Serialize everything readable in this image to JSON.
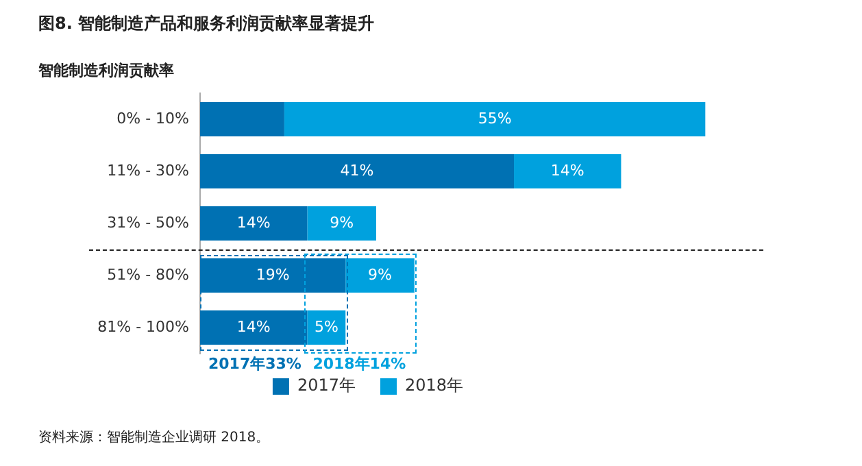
{
  "chart_data": {
    "type": "bar",
    "orientation": "horizontal",
    "stacked": true,
    "title": "图8. 智能制造产品和服务利润贡献率显著提升",
    "ylabel": "智能制造利润贡献率",
    "categories": [
      "0% - 10%",
      "11% - 30%",
      "31% - 50%",
      "51% - 80%",
      "81% - 100%"
    ],
    "series": [
      {
        "name": "2017年",
        "color": "#0071b3",
        "values": [
          11,
          41,
          14,
          19,
          14
        ],
        "value_labels": [
          null,
          "41%",
          "14%",
          "19%",
          "14%"
        ]
      },
      {
        "name": "2018年",
        "color": "#00a1de",
        "values": [
          55,
          14,
          9,
          9,
          5
        ],
        "value_labels": [
          "55%",
          "14%",
          "9%",
          "9%",
          "5%"
        ]
      }
    ],
    "legend": "bottom",
    "annotations": [
      "2017年33%",
      "2018年14%",
      "资料来源：智能制造企业调研 2018。"
    ]
  }
}
